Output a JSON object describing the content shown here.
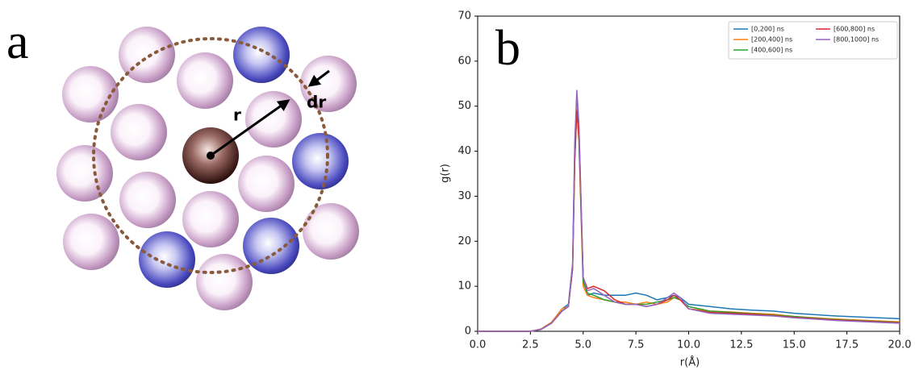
{
  "panel_labels": [
    "a",
    "b"
  ],
  "diagram": {
    "labels": [
      "r",
      "dr"
    ]
  },
  "chart_data": {
    "type": "line",
    "xlabel": "r(Å)",
    "ylabel": "g(r)",
    "x": [
      0,
      2.5,
      3.0,
      3.5,
      4.0,
      4.3,
      4.5,
      4.6,
      4.7,
      4.8,
      5.0,
      5.2,
      5.5,
      6.0,
      6.5,
      7.0,
      7.5,
      8.0,
      8.5,
      9.0,
      9.3,
      9.6,
      10.0,
      11,
      12,
      13,
      14,
      15,
      16,
      17,
      18,
      19,
      20
    ],
    "series": [
      {
        "name": "[0,200] ns",
        "color": "#1f77b4",
        "values": [
          0,
          0,
          0.5,
          2,
          5,
          6,
          15,
          40,
          52,
          45,
          12,
          8,
          8.5,
          8,
          8,
          8,
          8.5,
          8,
          7,
          7.5,
          8,
          7.5,
          6,
          5.5,
          5,
          4.7,
          4.5,
          4,
          3.7,
          3.4,
          3.2,
          3,
          2.8
        ]
      },
      {
        "name": "[200,400] ns",
        "color": "#ff7f0e",
        "values": [
          0,
          0,
          0.5,
          2,
          5,
          5.5,
          14,
          38,
          50,
          42,
          10,
          8,
          7.5,
          7,
          6.5,
          6.5,
          6,
          6.5,
          6,
          6.5,
          7.5,
          7,
          5,
          4.5,
          4.3,
          4,
          3.8,
          3.3,
          3,
          2.7,
          2.5,
          2.3,
          2.1
        ]
      },
      {
        "name": "[400,600] ns",
        "color": "#2ca02c",
        "values": [
          0,
          0,
          0.4,
          1.8,
          4.5,
          5.5,
          14,
          38,
          49,
          43,
          11,
          8.5,
          8,
          7,
          6.5,
          6,
          6,
          6,
          6.5,
          7,
          7.5,
          7,
          5.5,
          4.5,
          4.2,
          3.9,
          3.6,
          3.3,
          2.9,
          2.6,
          2.4,
          2.2,
          2
        ]
      },
      {
        "name": "[600,800] ns",
        "color": "#d62728",
        "values": [
          0,
          0,
          0.4,
          1.8,
          4.5,
          5.5,
          14,
          38,
          49,
          43,
          12,
          9.5,
          10,
          9,
          7,
          6,
          6,
          5.5,
          6,
          7,
          8,
          7,
          5,
          4.2,
          4,
          3.8,
          3.5,
          3.1,
          2.8,
          2.5,
          2.3,
          2.1,
          1.9
        ]
      },
      {
        "name": "[800,1000] ns",
        "color": "#9467bd",
        "values": [
          0,
          0,
          0.4,
          1.8,
          4.5,
          5.5,
          15,
          42,
          53.5,
          46,
          12,
          9,
          9.5,
          8,
          6.5,
          6,
          6,
          5.5,
          6,
          7.5,
          8.5,
          7.5,
          5,
          4,
          3.8,
          3.6,
          3.4,
          3,
          2.7,
          2.4,
          2.2,
          2,
          1.8
        ]
      }
    ],
    "xlim": [
      0,
      20
    ],
    "ylim": [
      0,
      70
    ],
    "xticks": [
      {
        "value": 0,
        "label": "0.0"
      },
      {
        "value": 2.5,
        "label": "2.5"
      },
      {
        "value": 5,
        "label": "5.0"
      },
      {
        "value": 7.5,
        "label": "7.5"
      },
      {
        "value": 10,
        "label": "10.0"
      },
      {
        "value": 12.5,
        "label": "12.5"
      },
      {
        "value": 15,
        "label": "15.0"
      },
      {
        "value": 17.5,
        "label": "17.5"
      },
      {
        "value": 20,
        "label": "20.0"
      }
    ],
    "yticks": [
      0,
      10,
      20,
      30,
      40,
      50,
      60,
      70
    ],
    "grid": false,
    "legend": "upper right"
  }
}
